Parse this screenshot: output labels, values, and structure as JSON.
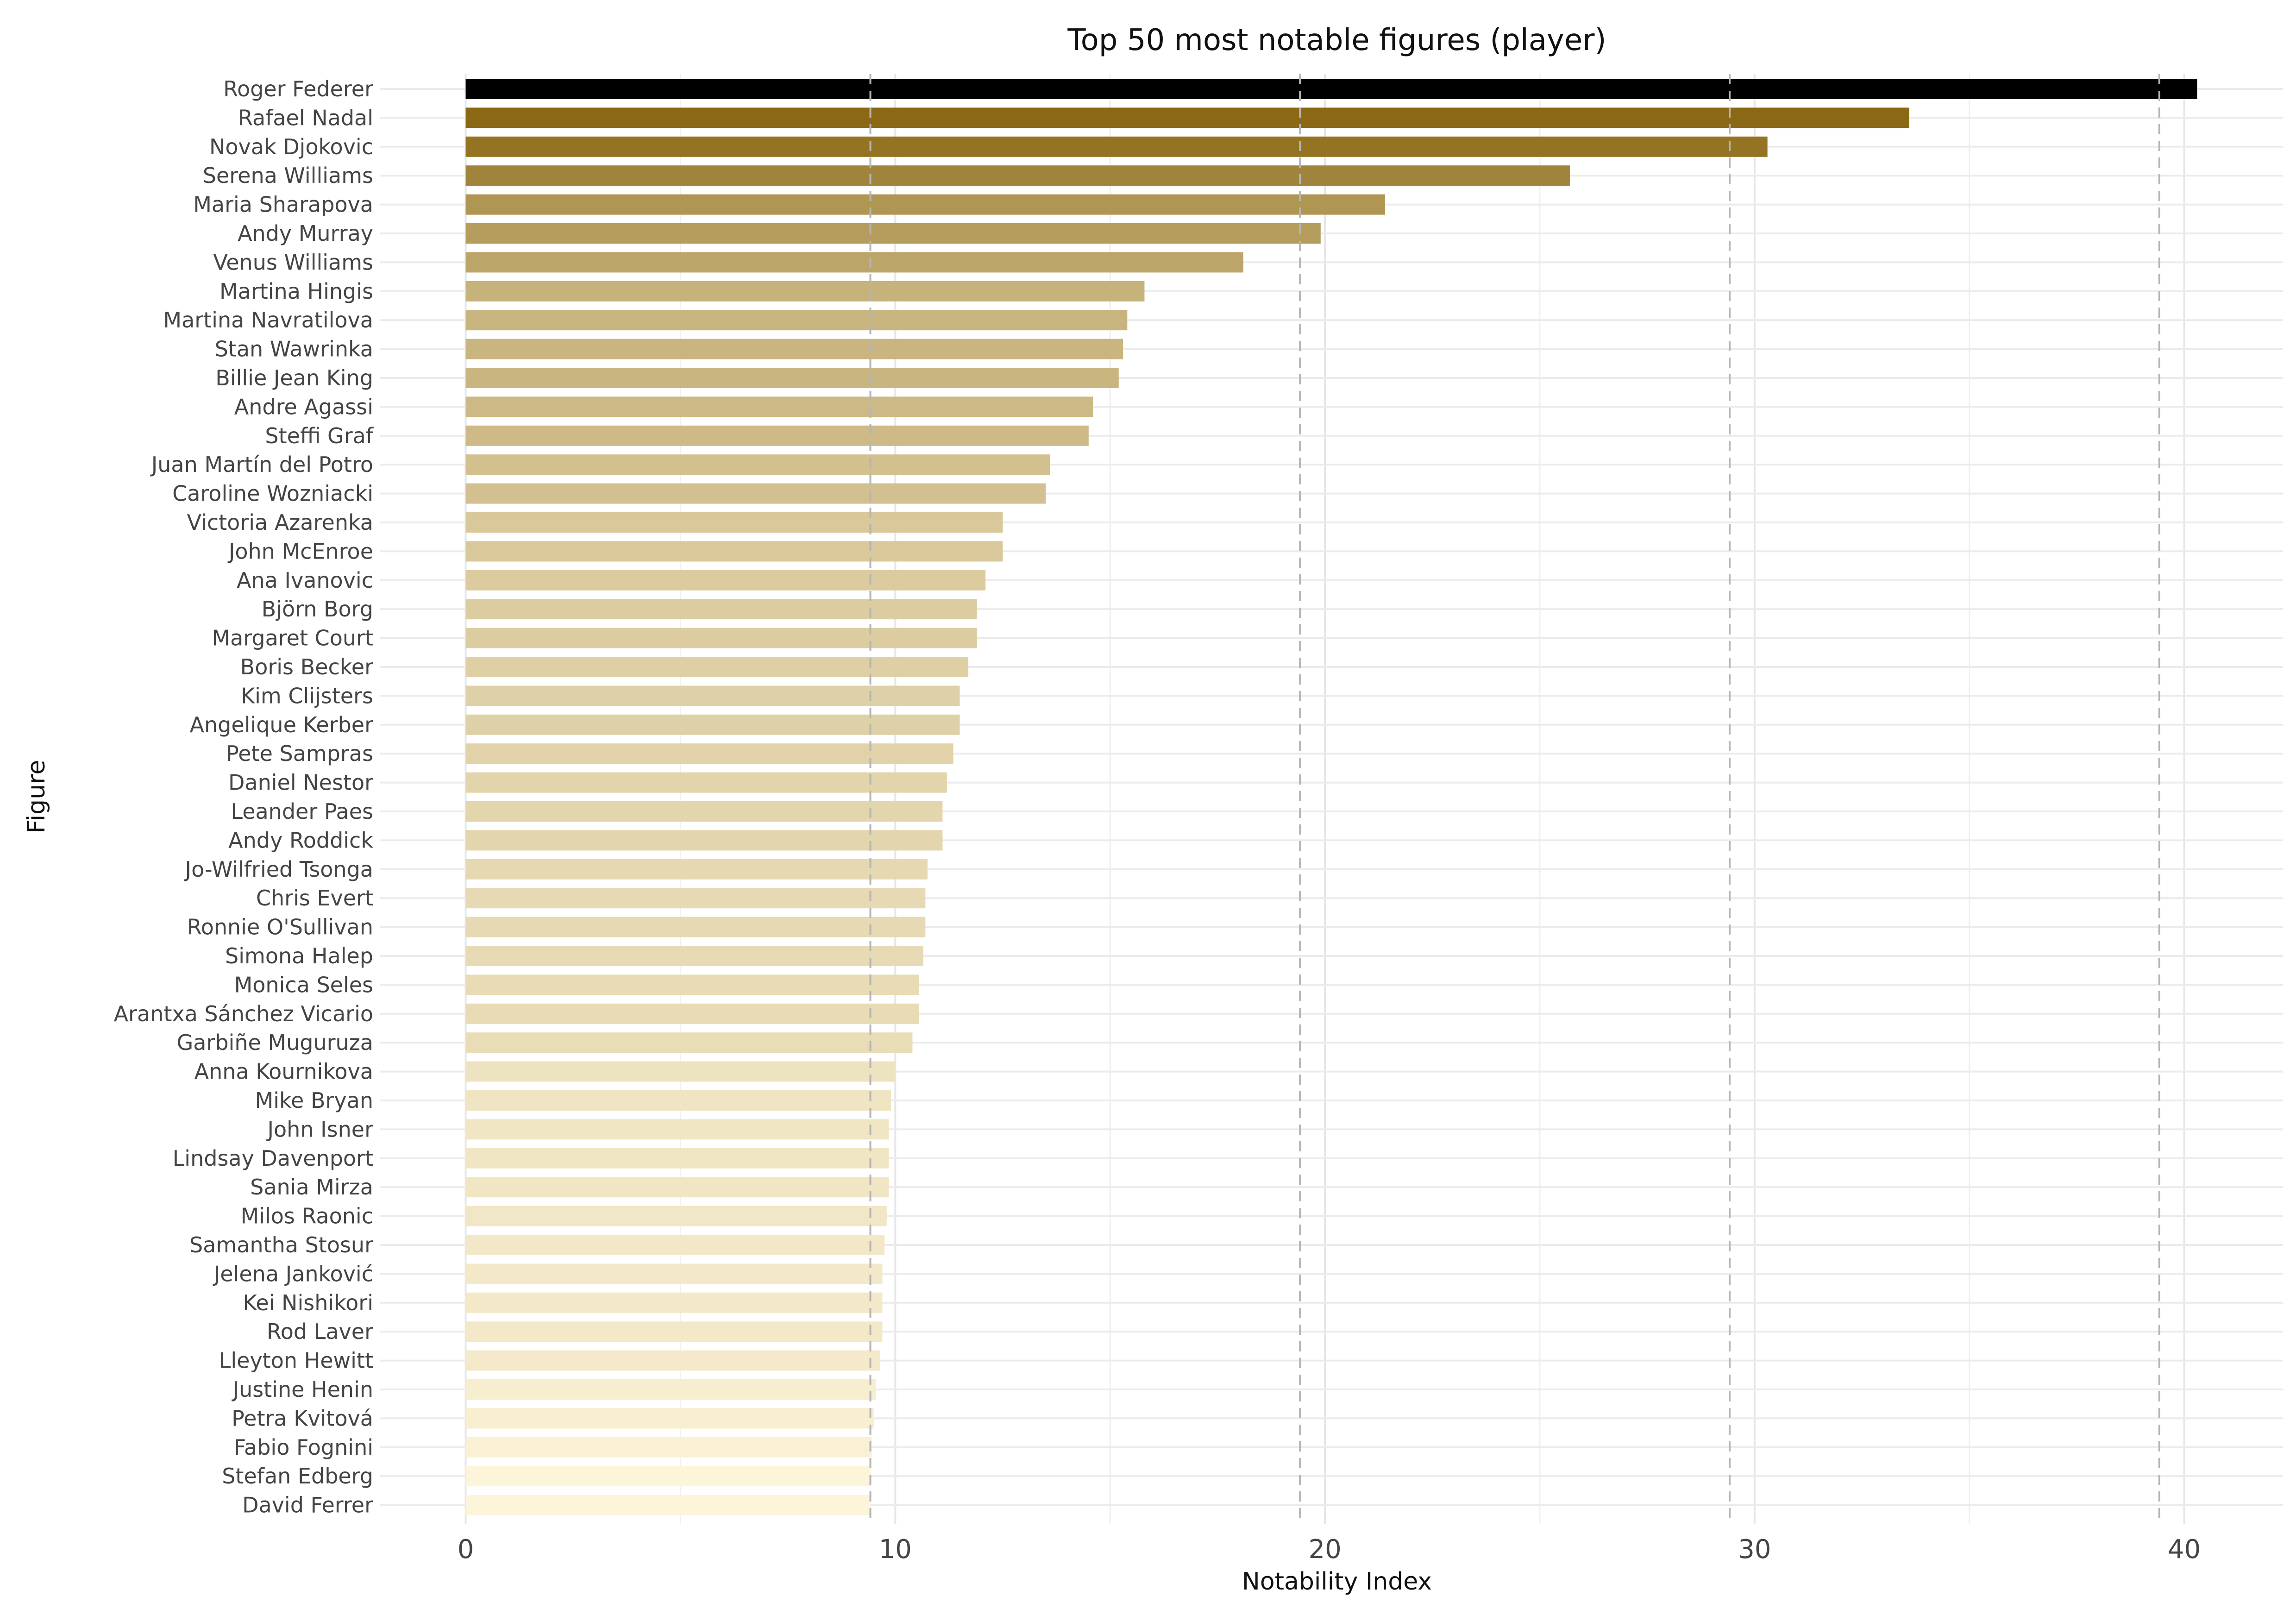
{
  "chart_data": {
    "type": "bar",
    "orientation": "horizontal",
    "title": "Top 50 most notable figures (player)",
    "xlabel": "Notability Index",
    "ylabel": "Figure",
    "xlim": [
      -2,
      42.3
    ],
    "x_ticks": [
      0,
      10,
      20,
      30,
      40
    ],
    "x_tick_labels": [
      "0",
      "10",
      "20",
      "30",
      "40"
    ],
    "grid": true,
    "reference_lines": [
      9.42,
      19.42,
      29.42,
      39.42
    ],
    "color_scale": {
      "low": "#fdf5da",
      "high": "#8b6914",
      "top": "#000000"
    },
    "categories": [
      "Roger Federer",
      "Rafael Nadal",
      "Novak Djokovic",
      "Serena Williams",
      "Maria Sharapova",
      "Andy Murray",
      "Venus Williams",
      "Martina Hingis",
      "Martina Navratilova",
      "Stan Wawrinka",
      "Billie Jean King",
      "Andre Agassi",
      "Steffi Graf",
      "Juan Martín del Potro",
      "Caroline Wozniacki",
      "Victoria Azarenka",
      "John McEnroe",
      "Ana Ivanovic",
      "Björn Borg",
      "Margaret Court",
      "Boris Becker",
      "Kim Clijsters",
      "Angelique Kerber",
      "Pete Sampras",
      "Daniel Nestor",
      "Leander Paes",
      "Andy Roddick",
      "Jo-Wilfried Tsonga",
      "Chris Evert",
      "Ronnie O'Sullivan",
      "Simona Halep",
      "Monica Seles",
      "Arantxa Sánchez Vicario",
      "Garbiñe Muguruza",
      "Anna Kournikova",
      "Mike Bryan",
      "John Isner",
      "Lindsay Davenport",
      "Sania Mirza",
      "Milos Raonic",
      "Samantha Stosur",
      "Jelena Janković",
      "Kei Nishikori",
      "Rod Laver",
      "Lleyton Hewitt",
      "Justine Henin",
      "Petra Kvitová",
      "Fabio Fognini",
      "Stefan Edberg",
      "David Ferrer"
    ],
    "values": [
      40.3,
      33.6,
      30.3,
      25.7,
      21.4,
      19.9,
      18.1,
      15.8,
      15.4,
      15.3,
      15.2,
      14.6,
      14.5,
      13.6,
      13.5,
      12.5,
      12.5,
      12.1,
      11.9,
      11.9,
      11.7,
      11.5,
      11.5,
      11.35,
      11.2,
      11.1,
      11.1,
      10.75,
      10.7,
      10.7,
      10.65,
      10.55,
      10.55,
      10.4,
      10.0,
      9.9,
      9.85,
      9.85,
      9.85,
      9.8,
      9.75,
      9.7,
      9.7,
      9.7,
      9.65,
      9.55,
      9.5,
      9.45,
      9.42,
      9.42
    ]
  }
}
